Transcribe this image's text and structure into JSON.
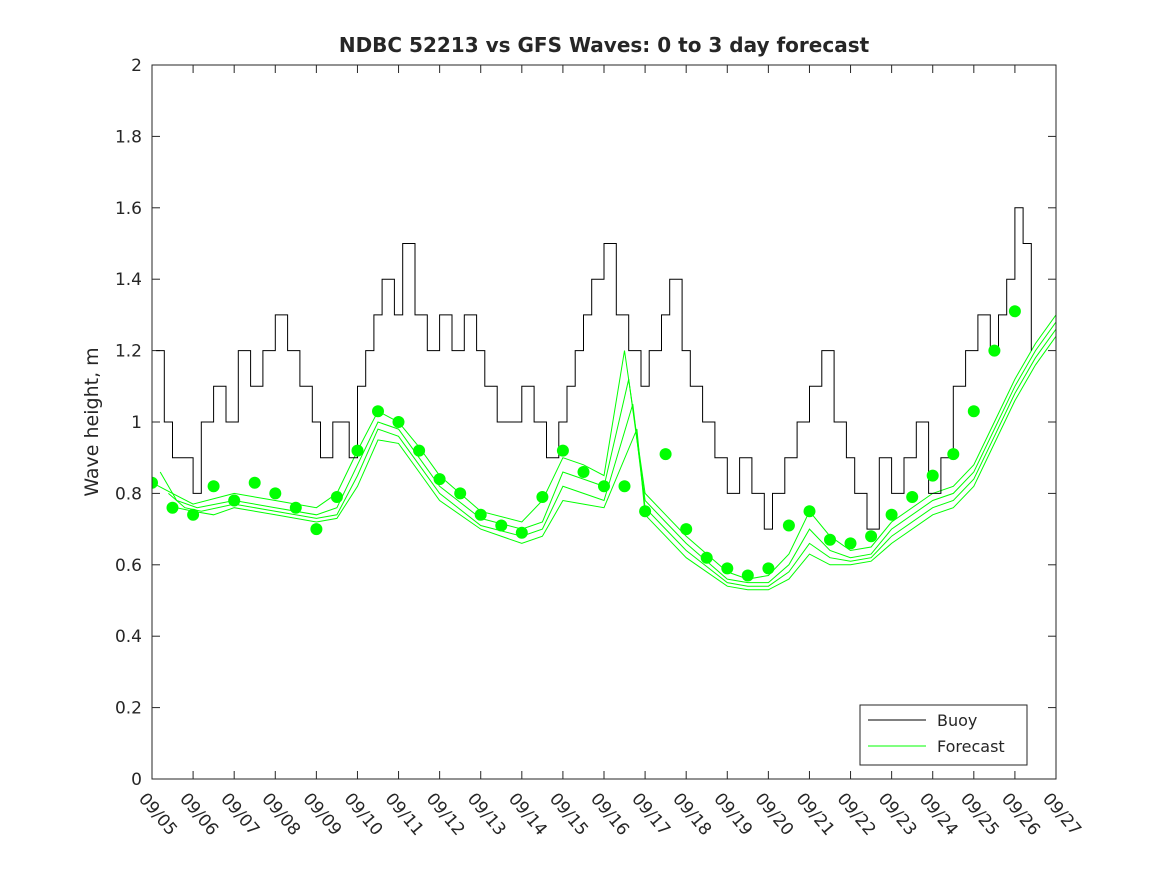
{
  "chart_data": {
    "type": "line",
    "title": "NDBC 52213 vs GFS Waves: 0 to 3 day forecast",
    "xlabel": "",
    "ylabel": "Wave height, m",
    "ylim": [
      0,
      2
    ],
    "xlim": [
      0,
      22
    ],
    "yticks": [
      0,
      0.2,
      0.4,
      0.6,
      0.8,
      1,
      1.2,
      1.4,
      1.6,
      1.8,
      2
    ],
    "ytick_labels": [
      "0",
      "0.2",
      "0.4",
      "0.6",
      "0.8",
      "1",
      "1.2",
      "1.4",
      "1.6",
      "1.8",
      "2"
    ],
    "xticks": [
      0,
      1,
      2,
      3,
      4,
      5,
      6,
      7,
      8,
      9,
      10,
      11,
      12,
      13,
      14,
      15,
      16,
      17,
      18,
      19,
      20,
      21,
      22
    ],
    "xtick_labels": [
      "09/05",
      "09/06",
      "09/07",
      "09/08",
      "09/09",
      "09/10",
      "09/11",
      "09/12",
      "09/13",
      "09/14",
      "09/15",
      "09/16",
      "09/17",
      "09/18",
      "09/19",
      "09/20",
      "09/21",
      "09/22",
      "09/23",
      "09/24",
      "09/25",
      "09/26",
      "09/27"
    ],
    "legend": {
      "position": "bottom-right",
      "entries": [
        "Buoy",
        "Forecast"
      ]
    },
    "colors": {
      "buoy": "#000000",
      "forecast": "#00ff00",
      "axis": "#262626"
    },
    "series": [
      {
        "name": "Buoy",
        "x": [
          0.1,
          0.3,
          0.5,
          0.8,
          1.0,
          1.2,
          1.5,
          1.8,
          2.1,
          2.4,
          2.7,
          3.0,
          3.3,
          3.6,
          3.9,
          4.1,
          4.4,
          4.8,
          5.0,
          5.2,
          5.4,
          5.6,
          5.9,
          6.1,
          6.4,
          6.7,
          7.0,
          7.3,
          7.6,
          7.9,
          8.1,
          8.4,
          8.7,
          9.0,
          9.3,
          9.6,
          9.9,
          10.1,
          10.3,
          10.5,
          10.7,
          11.0,
          11.3,
          11.6,
          11.9,
          12.1,
          12.4,
          12.6,
          12.9,
          13.1,
          13.4,
          13.7,
          14.0,
          14.3,
          14.6,
          14.9,
          15.1,
          15.4,
          15.7,
          16.0,
          16.3,
          16.6,
          16.9,
          17.1,
          17.4,
          17.7,
          18.0,
          18.3,
          18.6,
          18.9,
          19.2,
          19.5,
          19.8,
          20.1,
          20.4,
          20.6,
          20.8,
          21.0,
          21.2,
          21.4
        ],
        "y": [
          1.2,
          1.0,
          0.9,
          0.9,
          0.8,
          1.0,
          1.1,
          1.0,
          1.2,
          1.1,
          1.2,
          1.3,
          1.2,
          1.1,
          1.0,
          0.9,
          1.0,
          0.9,
          1.1,
          1.2,
          1.3,
          1.4,
          1.3,
          1.5,
          1.3,
          1.2,
          1.3,
          1.2,
          1.3,
          1.2,
          1.1,
          1.0,
          1.0,
          1.1,
          1.0,
          0.9,
          1.0,
          1.1,
          1.2,
          1.3,
          1.4,
          1.5,
          1.3,
          1.2,
          1.1,
          1.2,
          1.3,
          1.4,
          1.2,
          1.1,
          1.0,
          0.9,
          0.8,
          0.9,
          0.8,
          0.7,
          0.8,
          0.9,
          1.0,
          1.1,
          1.2,
          1.0,
          0.9,
          0.8,
          0.7,
          0.9,
          0.8,
          0.9,
          1.0,
          0.8,
          0.9,
          1.1,
          1.2,
          1.3,
          1.2,
          1.3,
          1.4,
          1.6,
          1.5,
          1.2
        ]
      },
      {
        "name": "Forecast",
        "markers": {
          "x": [
            0.0,
            0.5,
            1.0,
            1.5,
            2.0,
            2.5,
            3.0,
            3.5,
            4.0,
            4.5,
            5.0,
            5.5,
            6.0,
            6.5,
            7.0,
            7.5,
            8.0,
            8.5,
            9.0,
            9.5,
            10.0,
            10.5,
            11.0,
            11.5,
            12.0,
            12.5,
            13.0,
            13.5,
            14.0,
            14.5,
            15.0,
            15.5,
            16.0,
            16.5,
            17.0,
            17.5,
            18.0,
            18.5,
            19.0,
            19.5,
            20.0,
            20.5,
            21.0
          ],
          "y": [
            0.83,
            0.76,
            0.74,
            0.82,
            0.78,
            0.83,
            0.8,
            0.76,
            0.7,
            0.79,
            0.92,
            1.03,
            1.0,
            0.92,
            0.84,
            0.8,
            0.74,
            0.71,
            0.69,
            0.79,
            0.92,
            0.86,
            0.82,
            0.82,
            0.75,
            0.91,
            0.7,
            0.62,
            0.59,
            0.57,
            0.59,
            0.71,
            0.75,
            0.67,
            0.66,
            0.68,
            0.74,
            0.79,
            0.85,
            0.91,
            1.03,
            1.2,
            1.31
          ]
        },
        "runs": [
          {
            "x": [
              0.0,
              0.5,
              1.0,
              2.0,
              3.0,
              4.0,
              4.5,
              5.0,
              5.5,
              6.0,
              6.5,
              7.0,
              8.0,
              9.0,
              9.5,
              10.0,
              10.5,
              11.0,
              11.5,
              12.0,
              12.5,
              13.0,
              14.0,
              14.5,
              15.0,
              15.5,
              16.0,
              16.5,
              17.0,
              17.5,
              18.0,
              19.0,
              19.5,
              20.0,
              20.5,
              21.0,
              21.5,
              22.0
            ],
            "y": [
              0.83,
              0.8,
              0.77,
              0.8,
              0.78,
              0.76,
              0.8,
              0.92,
              1.03,
              1.0,
              0.93,
              0.85,
              0.75,
              0.72,
              0.78,
              0.9,
              0.88,
              0.85,
              1.2,
              0.8,
              0.74,
              0.68,
              0.58,
              0.56,
              0.57,
              0.63,
              0.75,
              0.68,
              0.64,
              0.65,
              0.72,
              0.8,
              0.82,
              0.88,
              1.0,
              1.12,
              1.22,
              1.3
            ]
          },
          {
            "x": [
              0.2,
              0.6,
              1.1,
              2.0,
              3.0,
              4.0,
              4.5,
              5.0,
              5.5,
              6.0,
              6.5,
              7.0,
              8.0,
              9.0,
              9.5,
              10.0,
              10.5,
              11.0,
              11.6,
              12.0,
              12.5,
              13.0,
              14.0,
              14.5,
              15.0,
              15.5,
              16.0,
              16.5,
              17.0,
              17.5,
              18.0,
              19.0,
              19.5,
              20.0,
              20.5,
              21.0,
              21.5,
              22.0
            ],
            "y": [
              0.86,
              0.78,
              0.76,
              0.78,
              0.76,
              0.74,
              0.76,
              0.88,
              1.0,
              0.98,
              0.9,
              0.82,
              0.73,
              0.7,
              0.72,
              0.86,
              0.84,
              0.82,
              1.12,
              0.78,
              0.72,
              0.66,
              0.56,
              0.55,
              0.55,
              0.6,
              0.7,
              0.64,
              0.62,
              0.63,
              0.7,
              0.78,
              0.8,
              0.86,
              0.98,
              1.1,
              1.2,
              1.28
            ]
          },
          {
            "x": [
              0.4,
              0.8,
              1.2,
              2.0,
              3.0,
              4.0,
              4.5,
              5.0,
              5.5,
              6.0,
              6.5,
              7.0,
              8.0,
              9.0,
              9.5,
              10.0,
              10.5,
              11.0,
              11.7,
              12.0,
              12.5,
              13.0,
              14.0,
              14.5,
              15.0,
              15.5,
              16.0,
              16.5,
              17.0,
              17.5,
              18.0,
              19.0,
              19.5,
              20.0,
              20.5,
              21.0,
              21.5,
              22.0
            ],
            "y": [
              0.8,
              0.76,
              0.75,
              0.77,
              0.75,
              0.73,
              0.74,
              0.85,
              0.98,
              0.96,
              0.88,
              0.8,
              0.71,
              0.68,
              0.7,
              0.82,
              0.8,
              0.78,
              1.05,
              0.76,
              0.7,
              0.64,
              0.55,
              0.54,
              0.54,
              0.58,
              0.66,
              0.62,
              0.61,
              0.62,
              0.68,
              0.76,
              0.78,
              0.84,
              0.96,
              1.08,
              1.18,
              1.26
            ]
          },
          {
            "x": [
              0.6,
              1.0,
              1.5,
              2.0,
              3.0,
              4.0,
              4.5,
              5.0,
              5.5,
              6.0,
              6.5,
              7.0,
              8.0,
              9.0,
              9.5,
              10.0,
              10.5,
              11.0,
              11.8,
              12.0,
              12.5,
              13.0,
              14.0,
              14.5,
              15.0,
              15.5,
              16.0,
              16.5,
              17.0,
              17.5,
              18.0,
              19.0,
              19.5,
              20.0,
              20.5,
              21.0,
              21.5,
              22.0
            ],
            "y": [
              0.76,
              0.75,
              0.74,
              0.76,
              0.74,
              0.72,
              0.73,
              0.82,
              0.95,
              0.94,
              0.86,
              0.78,
              0.7,
              0.66,
              0.68,
              0.78,
              0.77,
              0.76,
              0.98,
              0.74,
              0.68,
              0.62,
              0.54,
              0.53,
              0.53,
              0.56,
              0.63,
              0.6,
              0.6,
              0.61,
              0.66,
              0.74,
              0.76,
              0.82,
              0.94,
              1.06,
              1.16,
              1.24
            ]
          }
        ]
      }
    ]
  }
}
